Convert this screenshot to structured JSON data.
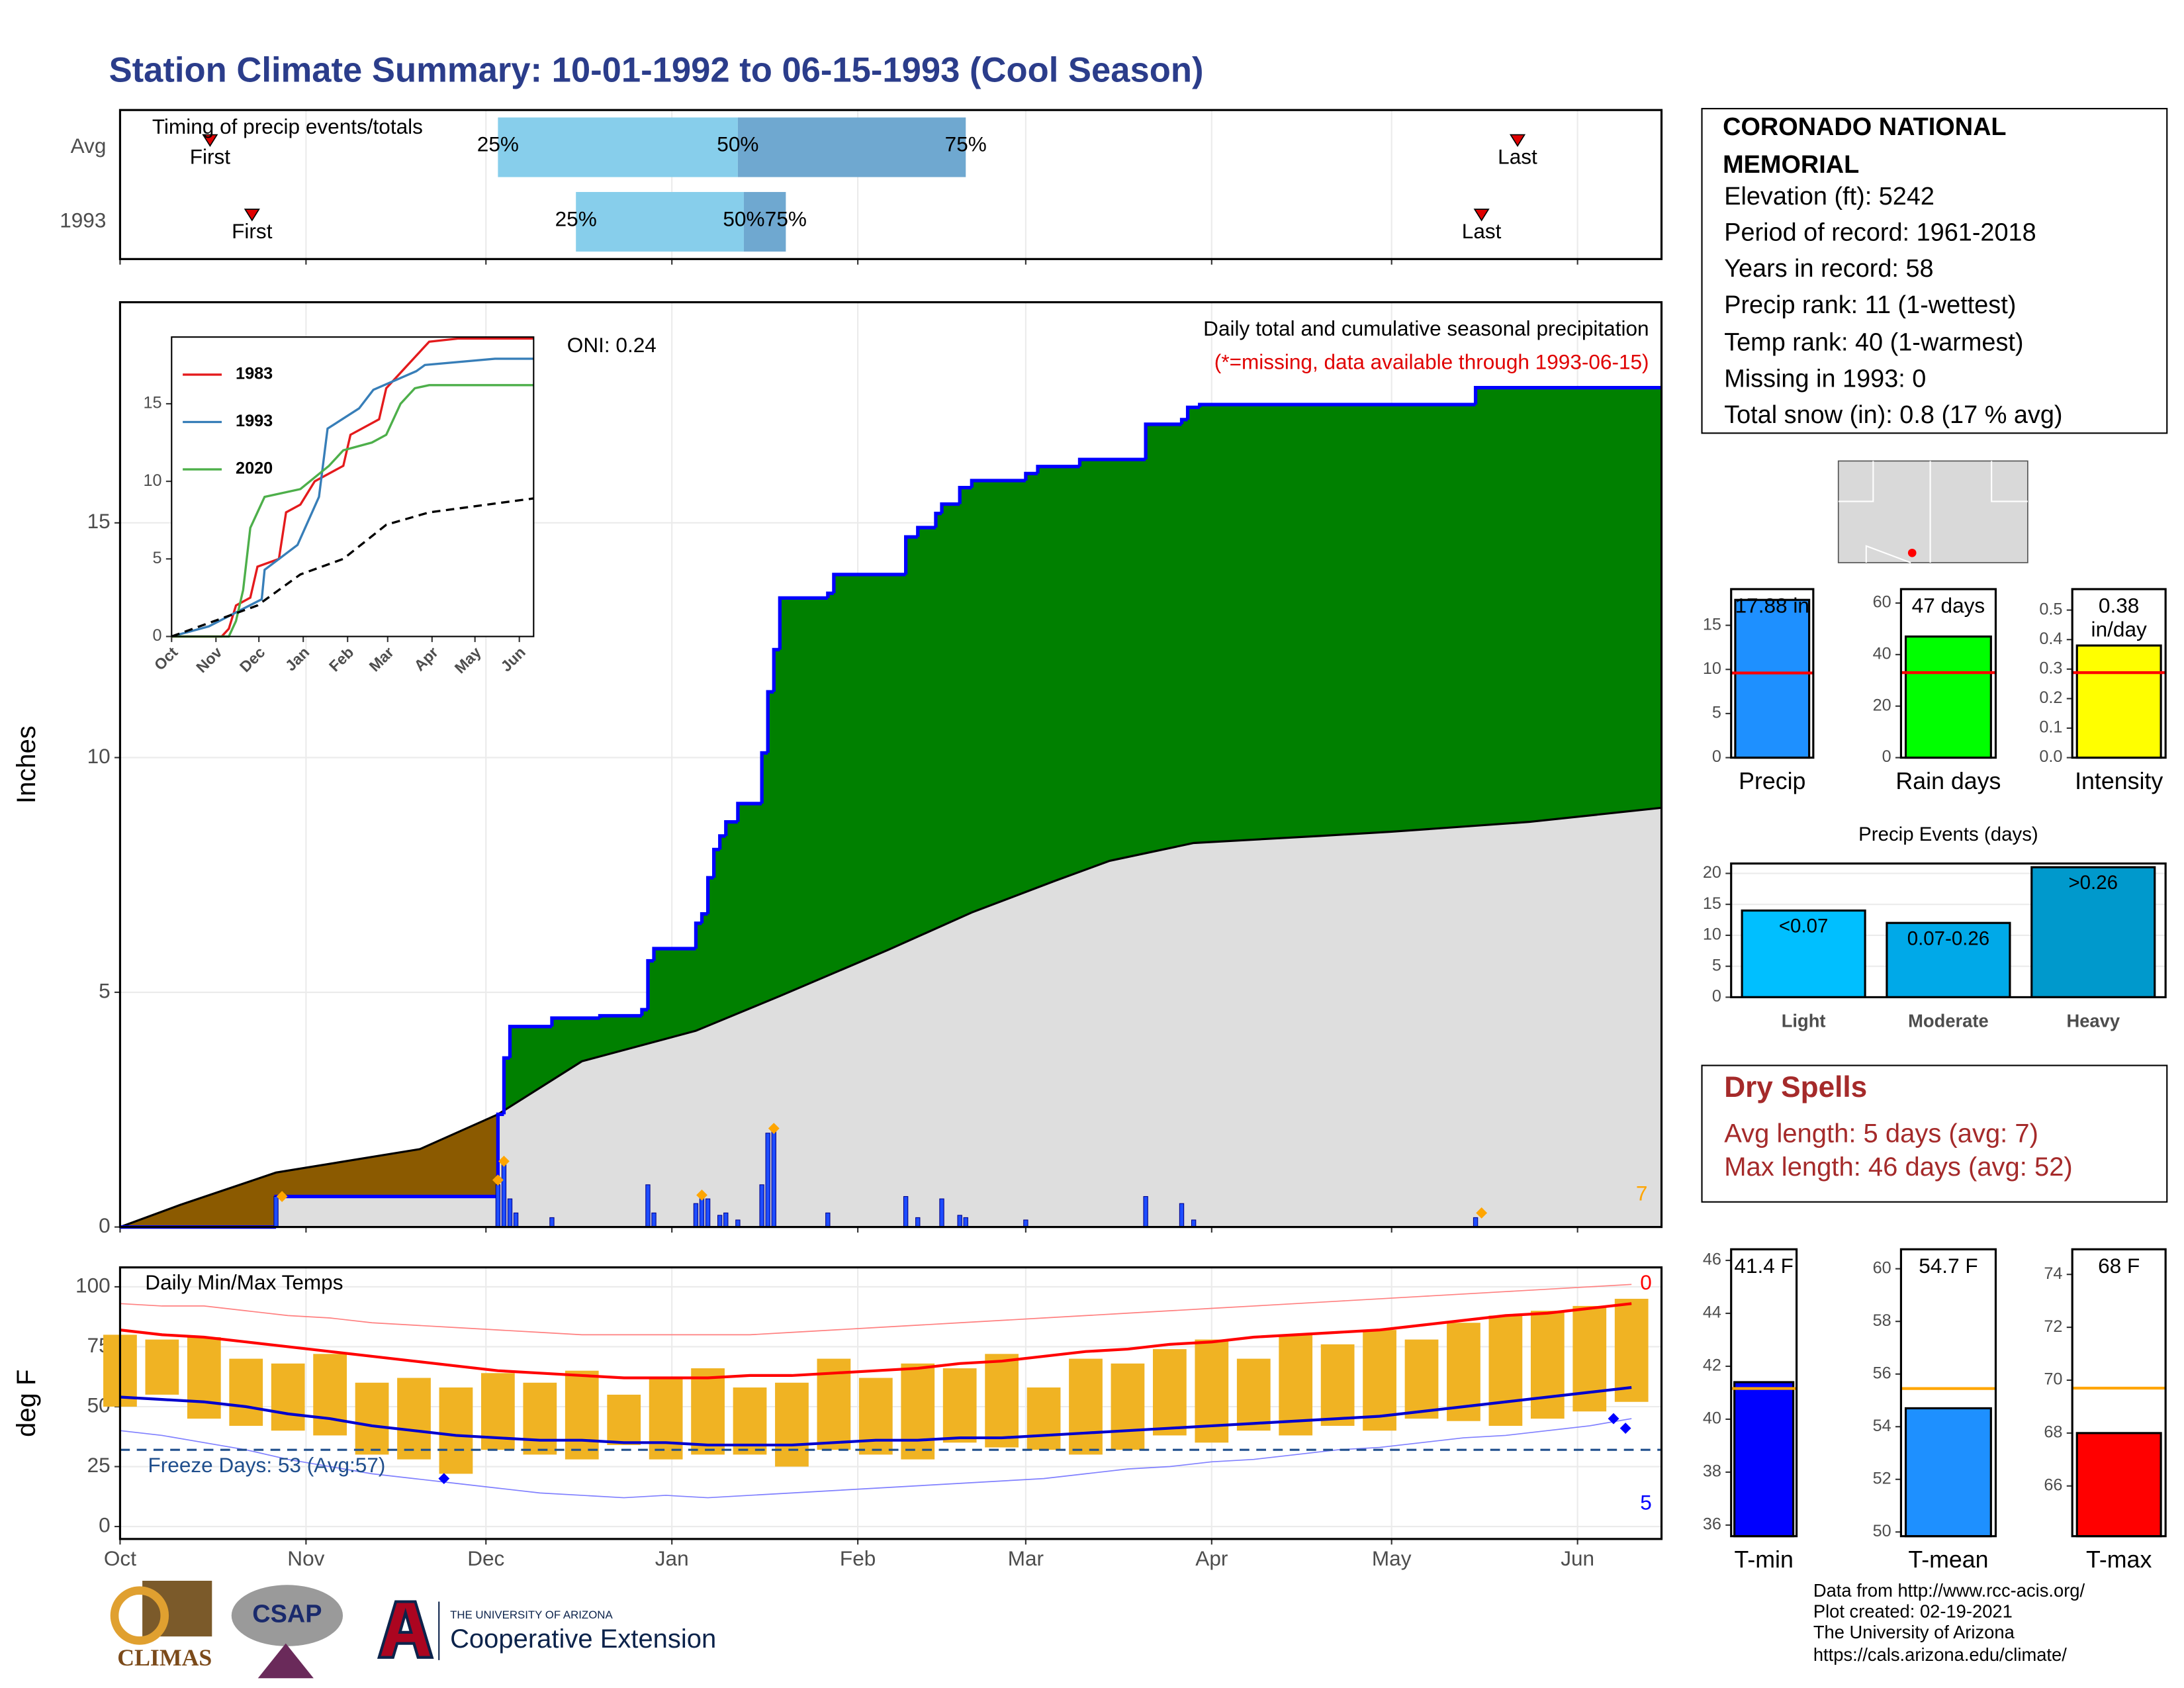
{
  "title": "Station Climate Summary: 10-01-1992 to 06-15-1993 (Cool Season)",
  "station": {
    "name": "CORONADO NATIONAL MEMORIAL",
    "details": [
      "Elevation (ft): 5242",
      "Period of record: 1961-2018",
      "Years in record: 58",
      "Precip rank: 11 (1-wettest)",
      "Temp rank: 40 (1-warmest)",
      "Missing in 1993: 0",
      "Total snow (in): 0.8 (17 % avg)"
    ]
  },
  "dry_spells": {
    "title": "Dry Spells",
    "lines": [
      "Avg length: 5 days (avg: 7)",
      "Max length: 46 days (avg: 52)"
    ]
  },
  "footer": {
    "logos": [
      "CLIMAS",
      "CSAP",
      "THE UNIVERSITY OF ARIZONA",
      "Cooperative Extension"
    ],
    "credits": [
      "Data from http://www.rcc-acis.org/",
      "Plot created: 02-19-2021",
      "The University of Arizona",
      "https://cals.arizona.edu/climate/"
    ]
  },
  "chart_data": [
    {
      "type": "timing",
      "title": "Timing of precip events/totals",
      "rows": [
        "Avg",
        "1993"
      ],
      "labels": [
        "First",
        "25%",
        "50%",
        "75%",
        "Last"
      ],
      "values": [
        [
          15,
          63,
          103,
          141,
          233
        ],
        [
          22,
          76,
          104,
          111,
          227
        ]
      ],
      "xlim": [
        0,
        257
      ],
      "colors": [
        "#87ceeb",
        "#6fa8d0"
      ],
      "marker_color": "#e00000",
      "grid": true
    },
    {
      "type": "cumulative",
      "ylabel": "Inches",
      "annotations": [
        "ONI: 0.24",
        "Daily total and cumulative seasonal precipitation",
        "(*=missing, data available through 1993-06-15)",
        "7"
      ],
      "xlim": [
        0,
        257
      ],
      "ylim": [
        0,
        19.7
      ],
      "yticks": [
        0,
        5,
        10,
        15
      ],
      "grid": true,
      "cumulative": {
        "x": [
          0,
          26,
          63,
          64,
          65,
          72,
          80,
          87,
          88,
          89,
          96,
          97,
          98,
          99,
          100,
          101,
          103,
          107,
          108,
          109,
          110,
          118,
          119,
          131,
          133,
          136,
          137,
          140,
          142,
          151,
          153,
          160,
          171,
          177,
          178,
          180,
          226
        ],
        "values": [
          0,
          0.65,
          2.4,
          3.6,
          4.27,
          4.45,
          4.5,
          4.63,
          5.67,
          5.93,
          6.47,
          6.67,
          7.44,
          8.04,
          8.33,
          8.63,
          9.02,
          10.1,
          11.4,
          12.3,
          13.4,
          13.5,
          13.9,
          14.7,
          14.9,
          15.2,
          15.4,
          15.75,
          15.9,
          16.05,
          16.2,
          16.35,
          17.1,
          17.2,
          17.46,
          17.52,
          17.88
        ],
        "color": "#0000ff"
      },
      "average": {
        "x": [
          0,
          10,
          26,
          50,
          63,
          77,
          96,
          110,
          128,
          142,
          156,
          165,
          179,
          200,
          212,
          235,
          257
        ],
        "values": [
          0,
          0.47,
          1.16,
          1.66,
          2.4,
          3.53,
          4.18,
          4.92,
          5.9,
          6.7,
          7.38,
          7.8,
          8.18,
          8.33,
          8.42,
          8.63,
          8.93
        ],
        "color": "#000000"
      },
      "daily": {
        "x": [
          26,
          63,
          64,
          65,
          66,
          72,
          88,
          89,
          96,
          97,
          98,
          100,
          101,
          103,
          107,
          108,
          109,
          118,
          131,
          133,
          137,
          140,
          141,
          151,
          171,
          177,
          179,
          226
        ],
        "values": [
          0.65,
          0.9,
          1.4,
          0.6,
          0.3,
          0.2,
          0.9,
          0.3,
          0.5,
          0.7,
          0.6,
          0.25,
          0.3,
          0.15,
          0.9,
          2.0,
          2.1,
          0.3,
          0.65,
          0.2,
          0.6,
          0.25,
          0.2,
          0.15,
          0.65,
          0.5,
          0.15,
          0.2
        ],
        "color": "#1e4dff"
      },
      "diamonds": {
        "x": [
          27,
          63,
          64,
          97,
          109,
          227
        ],
        "values": [
          0.65,
          1.0,
          1.4,
          0.68,
          2.1,
          0.3
        ],
        "color": "#ffa500"
      },
      "colors": {
        "above": "#008000",
        "below": "#8b5a00",
        "base": "#dedede"
      }
    },
    {
      "type": "line",
      "xlim": [
        0,
        253
      ],
      "ylim": [
        0,
        19.3
      ],
      "yticks": [
        0,
        5,
        10,
        15
      ],
      "xticks": [
        {
          "value": 0,
          "label": "Oct"
        },
        {
          "value": 31,
          "label": "Nov"
        },
        {
          "value": 61,
          "label": "Dec"
        },
        {
          "value": 92,
          "label": "Jan"
        },
        {
          "value": 123,
          "label": "Feb"
        },
        {
          "value": 151,
          "label": "Mar"
        },
        {
          "value": 182,
          "label": "Apr"
        },
        {
          "value": 212,
          "label": "May"
        },
        {
          "value": 243,
          "label": "Jun"
        }
      ],
      "series": [
        {
          "name": "1983",
          "color": "#e41a1c",
          "x": [
            0,
            35,
            40,
            45,
            55,
            60,
            75,
            80,
            90,
            100,
            120,
            125,
            145,
            150,
            160,
            170,
            180,
            200,
            253
          ],
          "values": [
            0,
            0,
            0.5,
            2,
            2.5,
            4.5,
            5,
            8,
            8.5,
            10,
            11,
            13,
            14,
            16,
            17,
            18,
            19,
            19.2,
            19.2
          ]
        },
        {
          "name": "1993",
          "color": "#377eb8",
          "x": [
            0,
            26,
            63,
            65,
            88,
            103,
            109,
            131,
            141,
            171,
            177,
            226,
            253
          ],
          "values": [
            0,
            0.65,
            2.4,
            4.3,
            5.9,
            9,
            13.4,
            14.7,
            15.9,
            17.1,
            17.5,
            17.9,
            17.9
          ]
        },
        {
          "name": "2020",
          "color": "#4daf4a",
          "x": [
            0,
            40,
            45,
            50,
            55,
            60,
            65,
            90,
            110,
            120,
            140,
            150,
            160,
            170,
            180,
            253
          ],
          "values": [
            0,
            0,
            1,
            3,
            7,
            8,
            9,
            9.5,
            11,
            12,
            12.5,
            13,
            15,
            16,
            16.2,
            16.2
          ]
        },
        {
          "color": "#000000",
          "dash": true,
          "x": [
            0,
            30,
            60,
            90,
            120,
            150,
            180,
            253
          ],
          "values": [
            0,
            1,
            2,
            4,
            5,
            7.2,
            8,
            8.9
          ]
        }
      ]
    },
    {
      "type": "temperature",
      "ylabel": "deg F",
      "annotations": [
        "Daily Min/Max Temps",
        "Freeze Days: 53 (Avg:57)",
        "0",
        "5"
      ],
      "xlim": [
        0,
        257
      ],
      "ylim": [
        -5.2,
        108.1
      ],
      "yticks": [
        0,
        25,
        50,
        75,
        100
      ],
      "grid": true,
      "xticks": [
        {
          "value": 0,
          "label": "Oct"
        },
        {
          "value": 31,
          "label": "Nov"
        },
        {
          "value": 61,
          "label": "Dec"
        },
        {
          "value": 92,
          "label": "Jan"
        },
        {
          "value": 123,
          "label": "Feb"
        },
        {
          "value": 151,
          "label": "Mar"
        },
        {
          "value": 182,
          "label": "Apr"
        },
        {
          "value": 212,
          "label": "May"
        },
        {
          "value": 243,
          "label": "Jun"
        }
      ],
      "x": [
        0,
        7,
        14,
        21,
        28,
        35,
        42,
        49,
        56,
        63,
        70,
        77,
        84,
        91,
        98,
        105,
        112,
        119,
        126,
        133,
        140,
        147,
        154,
        161,
        168,
        175,
        182,
        189,
        196,
        203,
        210,
        217,
        224,
        231,
        238,
        245,
        252
      ],
      "max": [
        80,
        78,
        79,
        70,
        68,
        72,
        60,
        62,
        58,
        64,
        60,
        65,
        55,
        62,
        66,
        58,
        60,
        70,
        62,
        68,
        66,
        72,
        58,
        70,
        68,
        74,
        78,
        70,
        80,
        76,
        82,
        78,
        85,
        88,
        90,
        92,
        95
      ],
      "min": [
        50,
        55,
        45,
        42,
        40,
        38,
        30,
        28,
        22,
        32,
        30,
        28,
        34,
        28,
        30,
        30,
        25,
        32,
        30,
        28,
        35,
        33,
        32,
        30,
        32,
        38,
        35,
        40,
        38,
        42,
        40,
        45,
        44,
        42,
        45,
        48,
        52
      ],
      "avg_max": [
        82,
        80,
        79,
        77,
        75,
        73,
        71,
        69,
        67,
        65,
        64,
        63,
        62,
        62,
        62,
        63,
        63,
        64,
        65,
        66,
        68,
        69,
        71,
        73,
        74,
        76,
        77,
        79,
        80,
        81,
        82,
        84,
        86,
        88,
        89,
        91,
        93
      ],
      "avg_min": [
        54,
        53,
        52,
        50,
        47,
        45,
        42,
        40,
        38,
        37,
        36,
        36,
        35,
        35,
        34,
        34,
        34,
        35,
        36,
        36,
        37,
        37,
        38,
        39,
        40,
        41,
        42,
        43,
        44,
        45,
        46,
        48,
        50,
        52,
        54,
        56,
        58
      ],
      "record_high": [
        93,
        92,
        92,
        90,
        88,
        87,
        85,
        84,
        83,
        82,
        81,
        80,
        80,
        80,
        80,
        80,
        81,
        82,
        83,
        84,
        85,
        86,
        87,
        88,
        89,
        90,
        91,
        92,
        93,
        94,
        95,
        96,
        97,
        98,
        99,
        100,
        101
      ],
      "record_low": [
        40,
        38,
        35,
        32,
        28,
        25,
        22,
        20,
        18,
        16,
        14,
        13,
        12,
        13,
        12,
        13,
        14,
        15,
        16,
        17,
        18,
        19,
        20,
        22,
        24,
        25,
        27,
        28,
        30,
        32,
        33,
        35,
        37,
        38,
        40,
        42,
        45
      ],
      "record_marks": {
        "x": [
          54,
          249,
          251
        ],
        "values": [
          20,
          45,
          41
        ],
        "color": "#0000ff"
      },
      "freeze_line": 32,
      "colors": {
        "bars": "#f0b323",
        "avg_max": "#ff0000",
        "avg_min": "#0000cd",
        "record_high": "#ff8080",
        "record_low": "#8080ff",
        "freeze": "#1f4e8c"
      }
    },
    {
      "type": "bar",
      "categories": [
        "Precip"
      ],
      "values": [
        17.88
      ],
      "value_labels": [
        "17.88 in"
      ],
      "average": 9.6,
      "average_color": "#ff0000",
      "color": "#1e90ff",
      "ylim": [
        0,
        19.1
      ],
      "yticks": [
        0,
        5,
        10,
        15
      ]
    },
    {
      "type": "bar",
      "categories": [
        "Rain days"
      ],
      "values": [
        47
      ],
      "value_labels": [
        "47 days"
      ],
      "average": 33,
      "average_color": "#ff0000",
      "color": "#00ff00",
      "ylim": [
        0,
        65.4
      ],
      "yticks": [
        0,
        20,
        40,
        60
      ]
    },
    {
      "type": "bar",
      "categories": [
        "Intensity"
      ],
      "values": [
        0.38
      ],
      "value_labels": [
        "0.38 in/day"
      ],
      "average": 0.288,
      "average_color": "#ff0000",
      "color": "#ffff00",
      "ylim": [
        0,
        0.571
      ],
      "yticks": [
        {
          "value": 0,
          "label": "0.0"
        },
        0.1,
        0.2,
        0.3,
        0.4,
        0.5
      ]
    },
    {
      "type": "bar",
      "title": "Precip Events (days)",
      "categories": [
        "Light",
        "Moderate",
        "Heavy"
      ],
      "values": [
        14,
        12,
        21
      ],
      "bar_labels": [
        "<0.07",
        "0.07-0.26",
        ">0.26"
      ],
      "colors": [
        "#00bfff",
        "#00a9e8",
        "#0099cc"
      ],
      "ylim": [
        0,
        21.6
      ],
      "yticks": [
        0,
        5,
        10,
        15,
        20
      ],
      "grid": true
    },
    {
      "type": "bar",
      "categories": [
        "T-min"
      ],
      "values": [
        41.4
      ],
      "value_labels": [
        "41.4 F"
      ],
      "average": 41.16,
      "average_color": "#ffa500",
      "color": "#0000ff",
      "ylim": [
        35.58,
        46.42
      ],
      "yticks": [
        36,
        38,
        40,
        42,
        44,
        46
      ]
    },
    {
      "type": "bar",
      "categories": [
        "T-mean"
      ],
      "values": [
        54.7
      ],
      "value_labels": [
        "54.7 F"
      ],
      "average": 55.45,
      "average_color": "#ffa500",
      "color": "#1e90ff",
      "ylim": [
        49.84,
        60.74
      ],
      "yticks": [
        50,
        52,
        54,
        56,
        58,
        60
      ]
    },
    {
      "type": "bar",
      "categories": [
        "T-max"
      ],
      "values": [
        68
      ],
      "value_labels": [
        "68 F"
      ],
      "average": 69.7,
      "average_color": "#ffa500",
      "color": "#ff0000",
      "ylim": [
        64.1,
        74.95
      ],
      "yticks": [
        66,
        68,
        70,
        72,
        74
      ]
    }
  ]
}
